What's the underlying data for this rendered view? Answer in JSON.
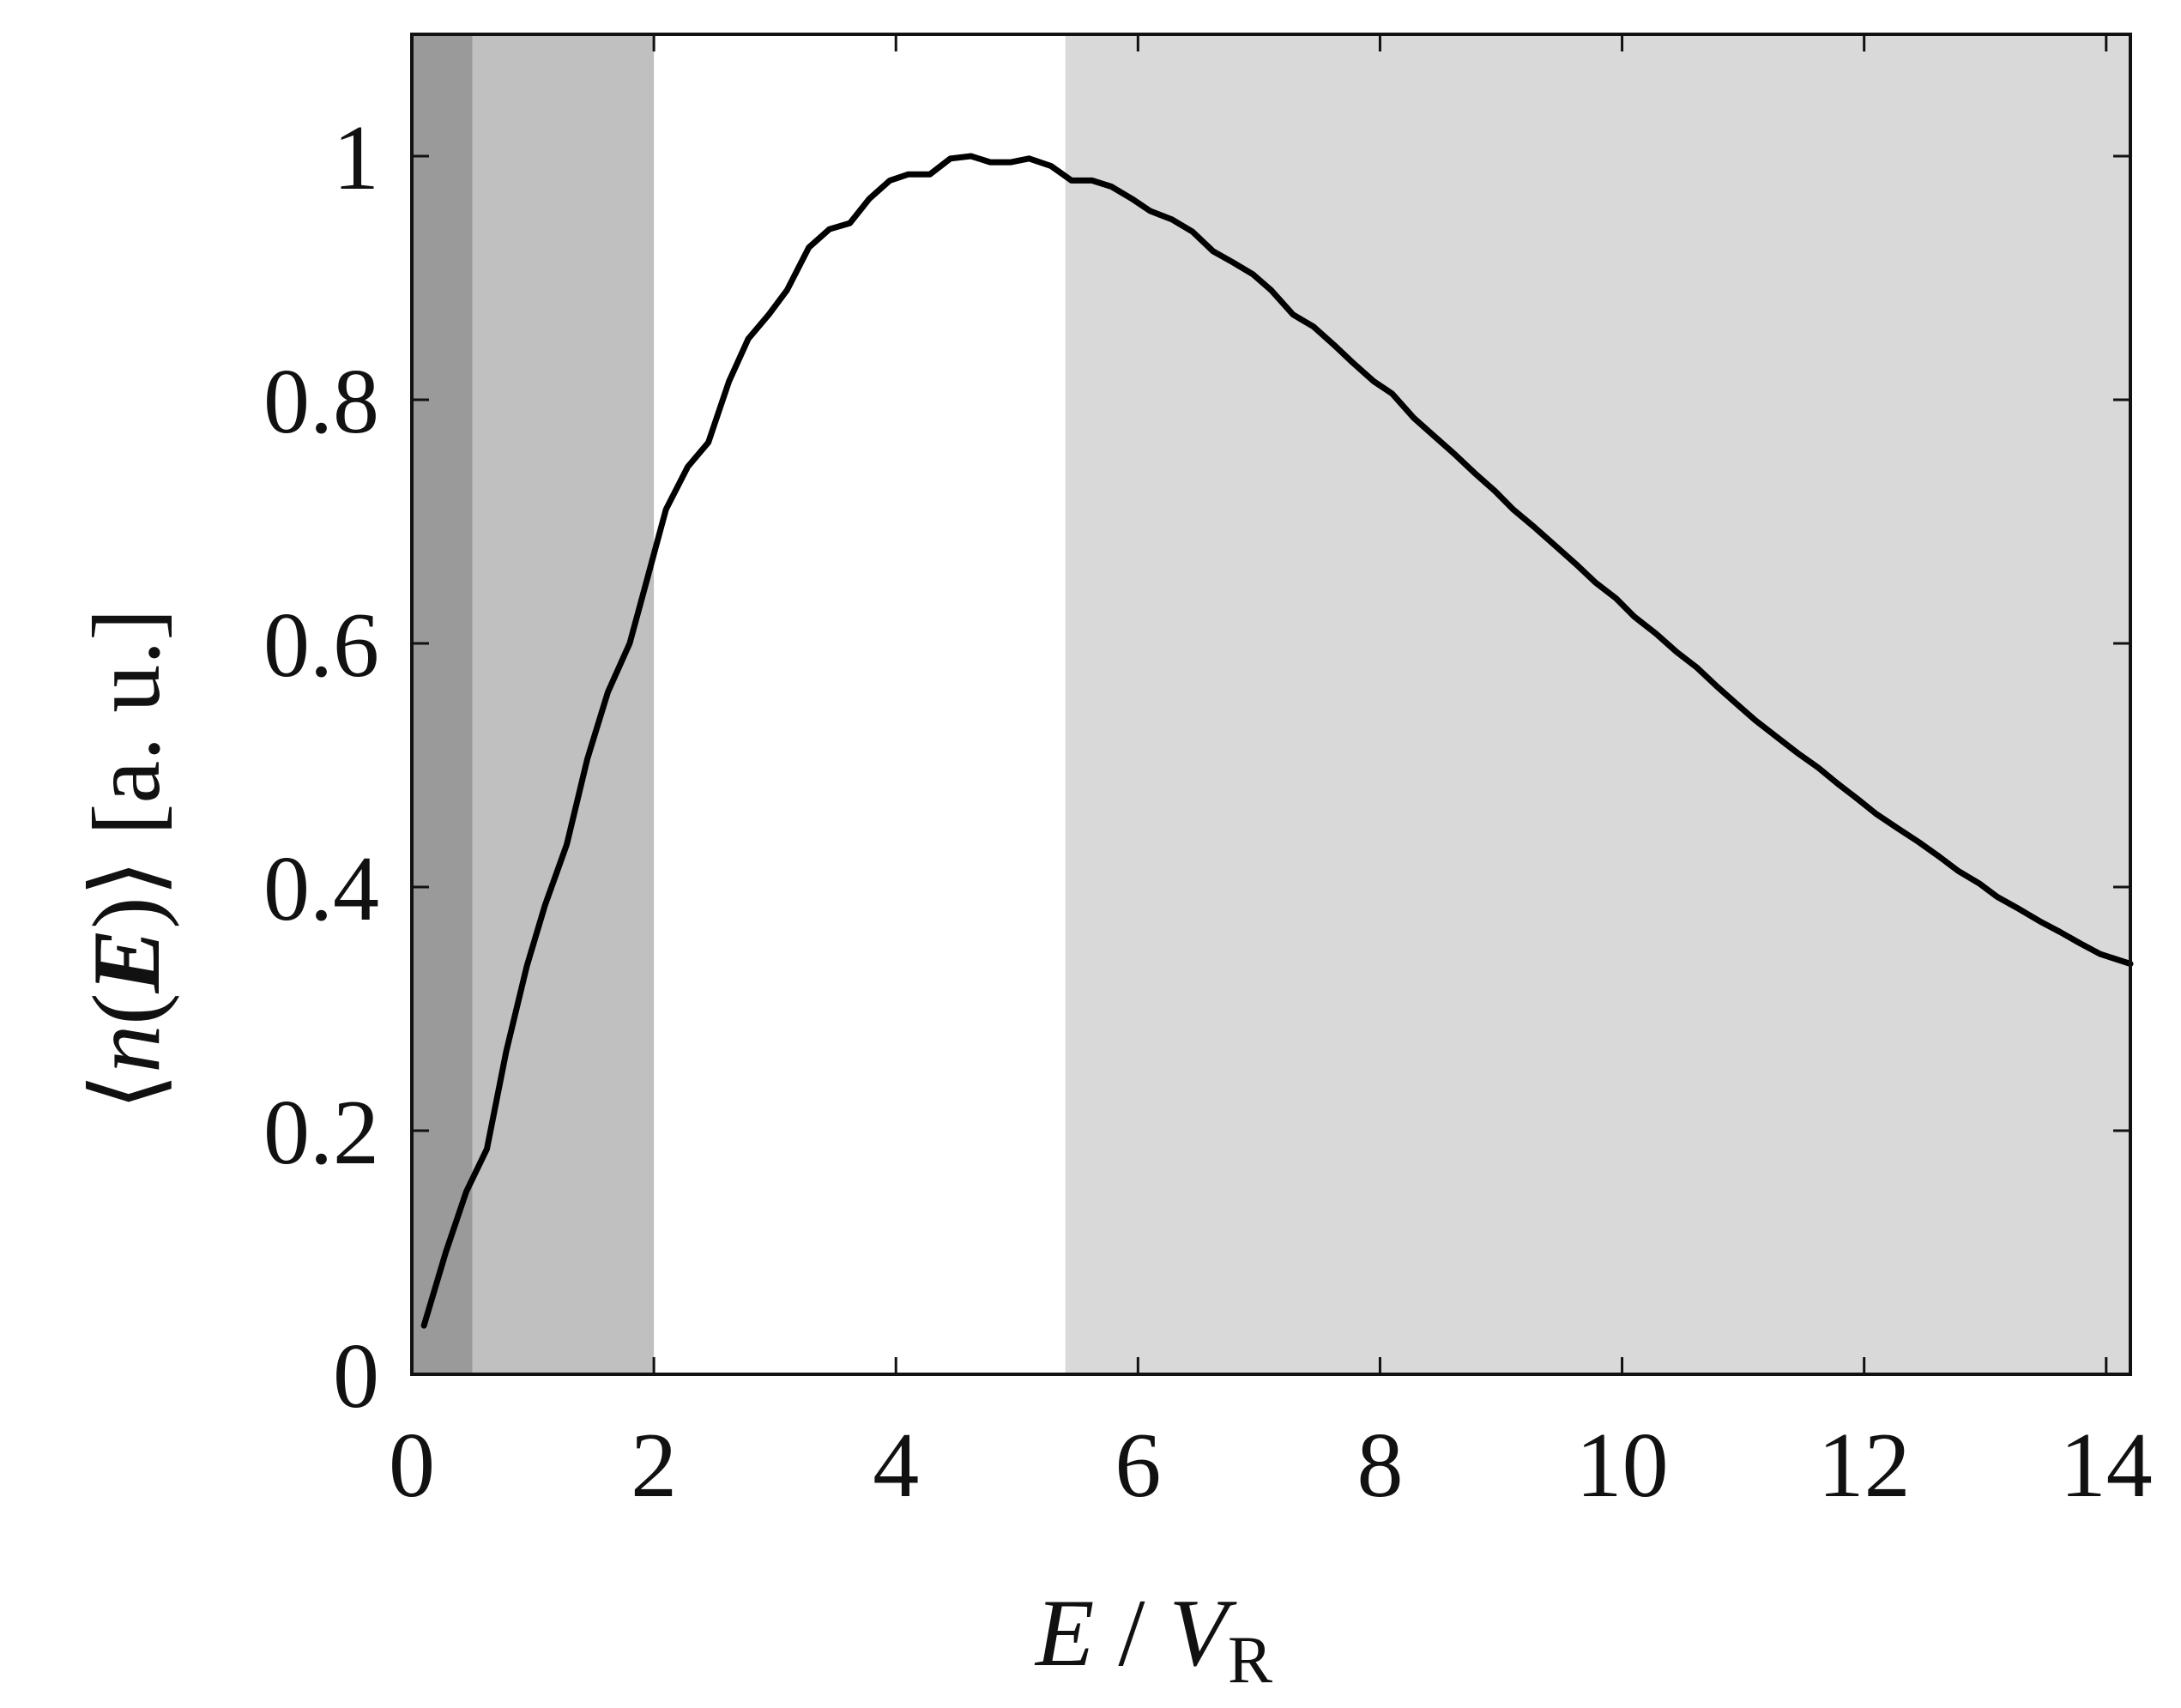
{
  "chart_data": {
    "type": "line",
    "xlabel": {
      "main": "E",
      "sep": " / ",
      "var": "V",
      "sub": "R"
    },
    "ylabel": {
      "open": "⟨",
      "var": "n",
      "lparen": "(",
      "bold": "E",
      "rparen": ")",
      "close": "⟩",
      "unit": " [a. u.]"
    },
    "xlim": [
      0,
      14.2
    ],
    "ylim": [
      0,
      1.1
    ],
    "xticks": [
      0,
      2,
      4,
      6,
      8,
      10,
      12,
      14
    ],
    "xtick_labels": [
      "0",
      "2",
      "4",
      "6",
      "8",
      "10",
      "12",
      "14"
    ],
    "yticks": [
      0,
      0.2,
      0.4,
      0.6,
      0.8,
      1
    ],
    "ytick_labels": [
      "0",
      "0.2",
      "0.4",
      "0.6",
      "0.8",
      "1"
    ],
    "grid": false,
    "shaded_regions": [
      {
        "x0": 0,
        "x1": 0.5,
        "color": "#9a9a9a"
      },
      {
        "x0": 0.5,
        "x1": 2.0,
        "color": "#c0c0c0"
      },
      {
        "x0": 5.4,
        "x1": 14.2,
        "color": "#d9d9d9"
      }
    ],
    "series": [
      {
        "color": "#000000",
        "x": [
          0.1,
          0.28,
          0.45,
          0.62,
          0.78,
          0.95,
          1.1,
          1.28,
          1.45,
          1.62,
          1.8,
          1.95,
          2.1,
          2.28,
          2.45,
          2.62,
          2.78,
          2.95,
          3.1,
          3.28,
          3.45,
          3.62,
          3.78,
          3.95,
          4.1,
          4.28,
          4.45,
          4.62,
          4.78,
          4.95,
          5.1,
          5.28,
          5.45,
          5.62,
          5.78,
          5.95,
          6.1,
          6.28,
          6.45,
          6.62,
          6.78,
          6.95,
          7.1,
          7.28,
          7.45,
          7.62,
          7.78,
          7.95,
          8.1,
          8.28,
          8.45,
          8.62,
          8.78,
          8.95,
          9.1,
          9.28,
          9.45,
          9.62,
          9.78,
          9.95,
          10.1,
          10.28,
          10.45,
          10.62,
          10.78,
          10.95,
          11.1,
          11.28,
          11.45,
          11.62,
          11.78,
          11.95,
          12.1,
          12.28,
          12.45,
          12.62,
          12.78,
          12.95,
          13.1,
          13.28,
          13.45,
          13.62,
          13.78,
          13.95,
          14.2
        ],
        "y": [
          0.04,
          0.1,
          0.15,
          0.185,
          0.265,
          0.335,
          0.385,
          0.435,
          0.505,
          0.56,
          0.6,
          0.655,
          0.71,
          0.745,
          0.765,
          0.815,
          0.85,
          0.87,
          0.89,
          0.925,
          0.94,
          0.945,
          0.965,
          0.98,
          0.985,
          0.985,
          0.998,
          1.0,
          0.995,
          0.995,
          0.998,
          0.992,
          0.98,
          0.98,
          0.975,
          0.965,
          0.955,
          0.948,
          0.938,
          0.922,
          0.913,
          0.903,
          0.89,
          0.87,
          0.86,
          0.845,
          0.83,
          0.815,
          0.805,
          0.785,
          0.77,
          0.755,
          0.74,
          0.725,
          0.71,
          0.695,
          0.68,
          0.665,
          0.65,
          0.637,
          0.622,
          0.608,
          0.593,
          0.58,
          0.565,
          0.55,
          0.537,
          0.523,
          0.51,
          0.498,
          0.485,
          0.472,
          0.46,
          0.448,
          0.437,
          0.425,
          0.413,
          0.403,
          0.392,
          0.382,
          0.372,
          0.363,
          0.354,
          0.345,
          0.337
        ]
      }
    ]
  }
}
